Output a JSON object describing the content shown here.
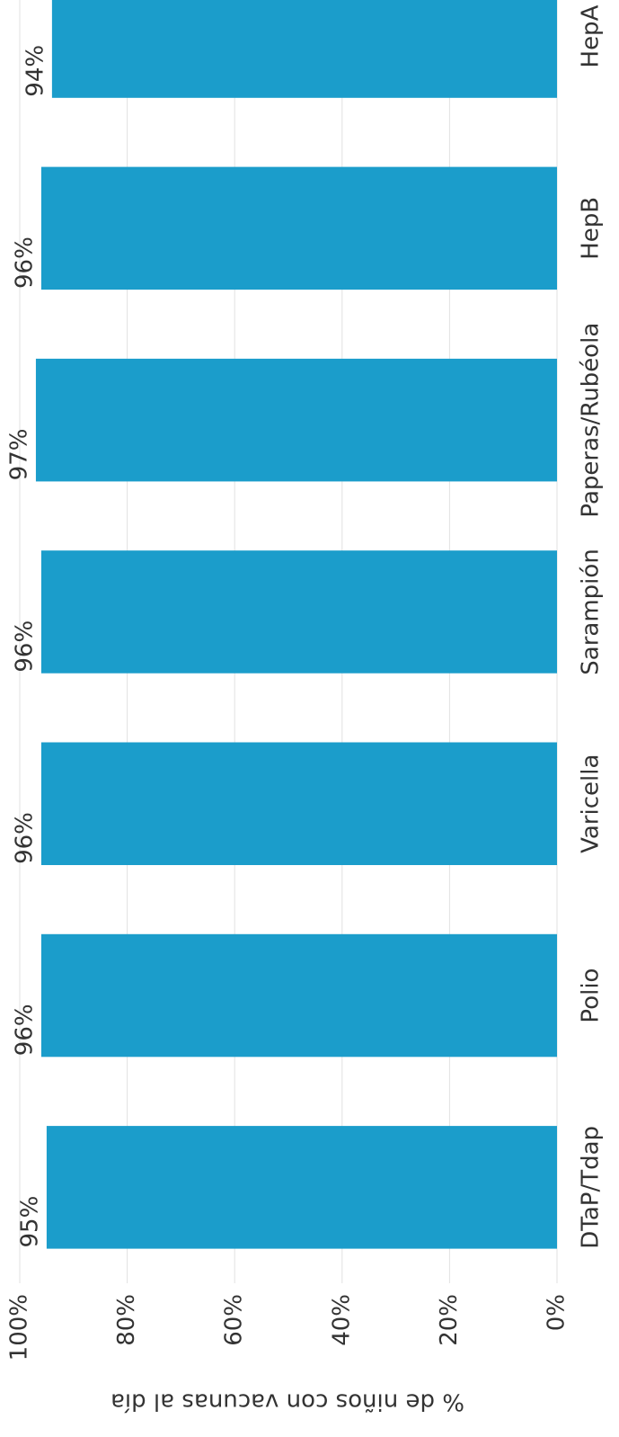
{
  "chart_data": {
    "type": "bar",
    "y_axis_label": "% de niños con vacunas al día",
    "categories": [
      "DTaP/Tdap",
      "Polio",
      "Varicella",
      "Sarampión",
      "Paperas/Rubéola",
      "HepB",
      "HepA"
    ],
    "values": [
      95,
      96,
      96,
      96,
      97,
      96,
      94
    ],
    "value_labels": [
      "95%",
      "96%",
      "96%",
      "96%",
      "97%",
      "96%",
      "94%"
    ],
    "color": "#1b9dcb",
    "ylim": [
      0,
      100
    ],
    "yticks": [
      {
        "value": 0,
        "label": "0%"
      },
      {
        "value": 20,
        "label": "20%"
      },
      {
        "value": 40,
        "label": "40%"
      },
      {
        "value": 60,
        "label": "60%"
      },
      {
        "value": 80,
        "label": "80%"
      },
      {
        "value": 100,
        "label": "100%"
      }
    ],
    "grid": true
  }
}
